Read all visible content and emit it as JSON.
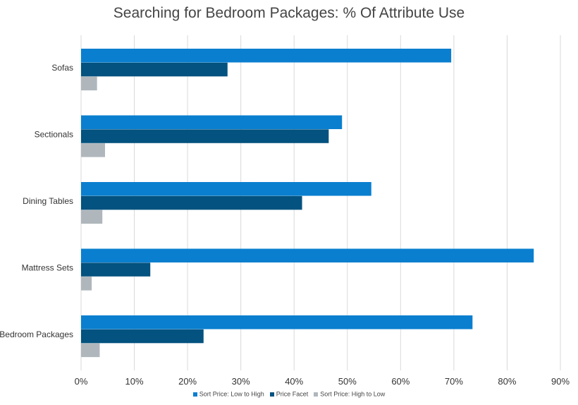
{
  "chart_data": {
    "type": "bar",
    "orientation": "horizontal",
    "title": "Searching for Bedroom Packages: % Of Attribute Use",
    "categories": [
      "Sofas",
      "Sectionals",
      "Dining Tables",
      "Mattress Sets",
      "Bedroom Packages"
    ],
    "series": [
      {
        "name": "Sort Price: Low to High",
        "color": "#0a7fcf",
        "values": [
          69.5,
          49,
          54.5,
          85,
          73.5
        ]
      },
      {
        "name": "Price Facet",
        "color": "#03527f",
        "values": [
          27.5,
          46.5,
          41.5,
          13,
          23
        ]
      },
      {
        "name": "Sort Price: High to Low",
        "color": "#b0b7bc",
        "values": [
          3,
          4.5,
          4,
          2,
          3.5
        ]
      }
    ],
    "xlim": [
      0,
      90
    ],
    "x_ticks": [
      "0%",
      "10%",
      "20%",
      "30%",
      "40%",
      "50%",
      "60%",
      "70%",
      "80%",
      "90%"
    ],
    "grid": "vertical",
    "legend_position": "bottom"
  }
}
